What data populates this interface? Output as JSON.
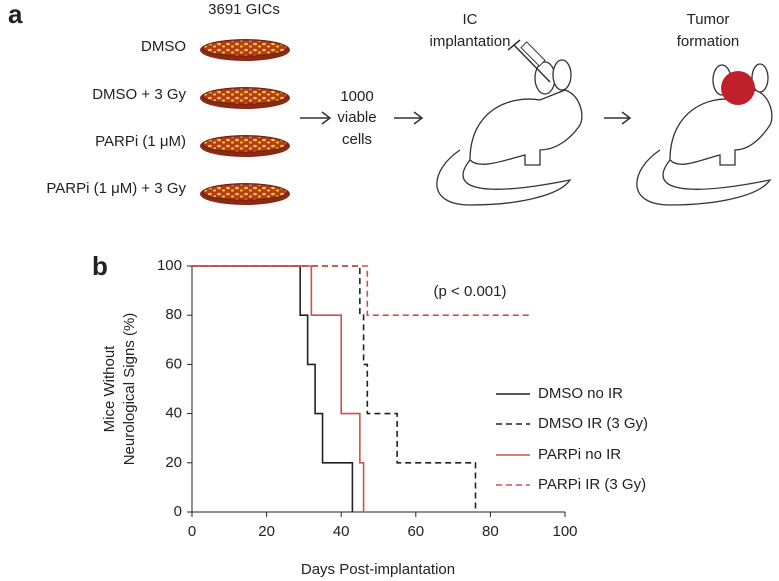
{
  "panel_labels": [
    "a",
    "b"
  ],
  "diagram": {
    "dish_header": "3691 GICs",
    "conditions": [
      "DMSO",
      "DMSO + 3 Gy",
      "PARPi (1 μM)",
      "PARPi (1 μM) + 3 Gy"
    ],
    "cells_label": [
      "1000",
      "viable",
      "cells"
    ],
    "implant_label": [
      "IC",
      "implantation"
    ],
    "tumor_label": [
      "Tumor",
      "formation"
    ]
  },
  "chart_data": {
    "type": "step",
    "ylabel": [
      "Mice Without",
      "Neurological Signs (%)"
    ],
    "xlabel": "Days Post-implantation",
    "annotation": "(p < 0.001)",
    "xlim": [
      0,
      100
    ],
    "xticks": [
      0,
      20,
      40,
      60,
      80,
      100
    ],
    "ylim": [
      0,
      100
    ],
    "yticks": [
      0,
      20,
      40,
      60,
      80,
      100
    ],
    "series": [
      {
        "name": "DMSO no IR",
        "color": "#222222",
        "dashed": false,
        "x": [
          0,
          29,
          31,
          33,
          35,
          43
        ],
        "values": [
          100,
          80,
          60,
          40,
          20,
          0
        ]
      },
      {
        "name": "DMSO IR (3 Gy)",
        "color": "#222222",
        "dashed": true,
        "x": [
          0,
          45,
          46,
          47,
          55,
          76
        ],
        "values": [
          100,
          80,
          60,
          40,
          20,
          0
        ]
      },
      {
        "name": "PARPi no IR",
        "color": "#d0504a",
        "dashed": false,
        "x": [
          0,
          32,
          40,
          45,
          46
        ],
        "values": [
          100,
          80,
          40,
          20,
          0
        ]
      },
      {
        "name": "PARPi IR (3 Gy)",
        "color": "#d0504a",
        "dashed": true,
        "x": [
          0,
          47,
          91
        ],
        "values": [
          100,
          80,
          80
        ]
      }
    ]
  }
}
